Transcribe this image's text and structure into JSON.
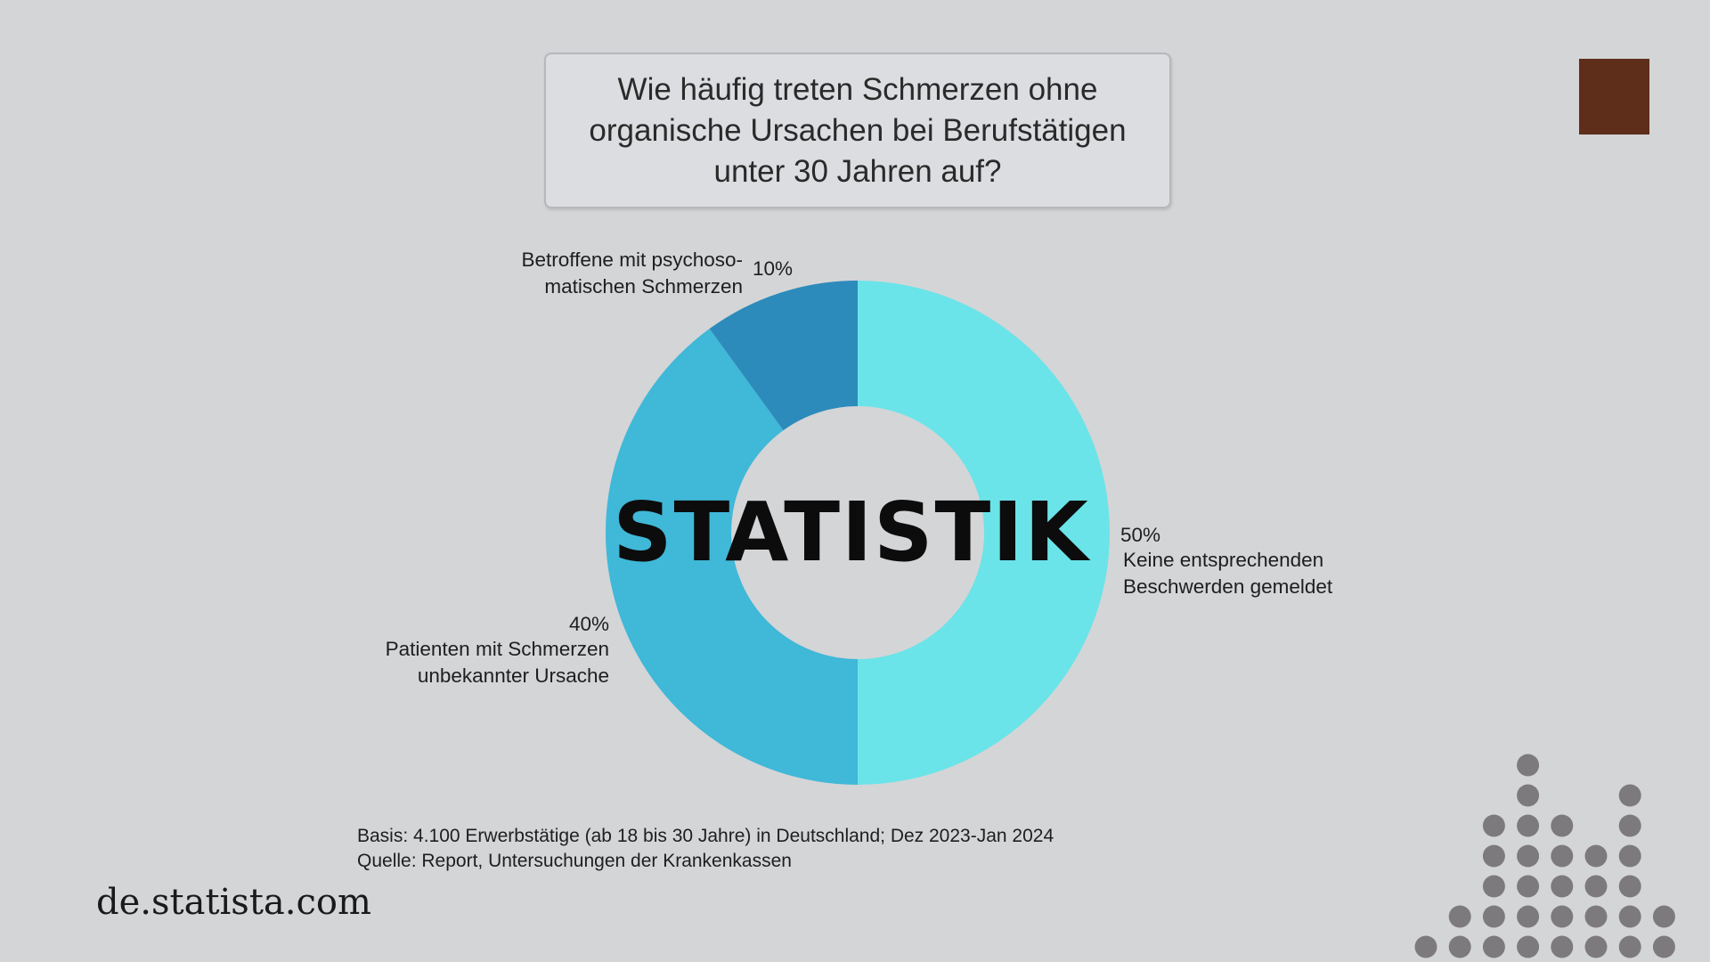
{
  "title": "Wie häufig treten Schmerzen ohne organische Ursachen bei Berufstätigen unter 30 Jahren auf?",
  "chart_data": {
    "type": "pie",
    "donut": true,
    "center_label": "STATISTIK",
    "slices": [
      {
        "label": "Keine entsprechenden\nBeschwerden gemeldet",
        "value": 50,
        "value_label": "50%",
        "color": "#6ae4e9"
      },
      {
        "label": "Patienten mit Schmerzen\nunbekannter Ursache",
        "value": 40,
        "value_label": "40%",
        "color": "#40b8d8"
      },
      {
        "label": "Betroffene mit psychoso-\nmatischen Schmerzen",
        "value": 10,
        "value_label": "10%",
        "color": "#2c8bbb"
      }
    ]
  },
  "footnote": {
    "basis": "Basis: 4.100 Erwerbstätige (ab 18 bis 30 Jahre) in Deutschland; Dez 2023-Jan 2024",
    "source": "Quelle: Report, Untersuchungen der Krankenkassen"
  },
  "brand": "de.statista.com",
  "colors": {
    "background": "#d4d5d7",
    "accent_square": "#5e2e1b",
    "dots": "#7d7a7e"
  }
}
